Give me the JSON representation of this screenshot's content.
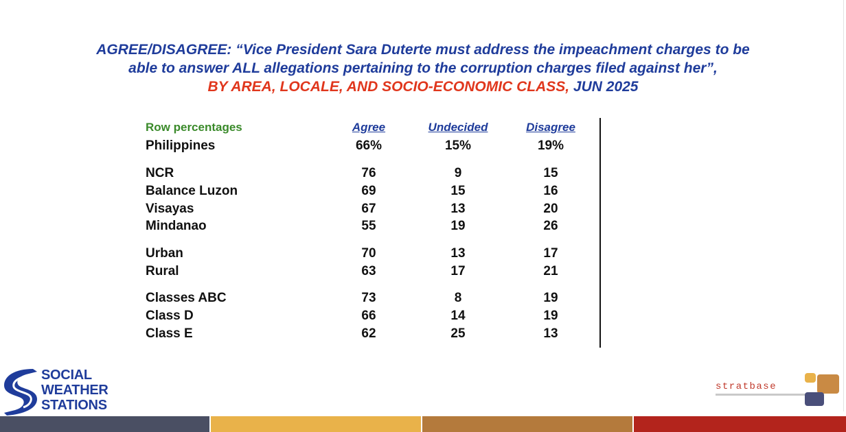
{
  "title": {
    "line1": "AGREE/DISAGREE: “Vice President Sara Duterte must address the impeachment charges to be",
    "line2": "able to answer ALL allegations pertaining to the corruption charges filed against her”,",
    "line3_red": "BY AREA, LOCALE, AND SOCIO-ECONOMIC CLASS,",
    "line3_blue": " JUN 2025"
  },
  "chart_data": {
    "type": "table",
    "row_header_label": "Row percentages",
    "columns": [
      "Agree",
      "Undecided",
      "Disagree"
    ],
    "rows": [
      {
        "label": "Philippines",
        "values": [
          "66%",
          "15%",
          "19%"
        ]
      },
      {
        "label": "NCR",
        "values": [
          "76",
          "9",
          "15"
        ]
      },
      {
        "label": "Balance Luzon",
        "values": [
          "69",
          "15",
          "16"
        ]
      },
      {
        "label": "Visayas",
        "values": [
          "67",
          "13",
          "20"
        ]
      },
      {
        "label": "Mindanao",
        "values": [
          "55",
          "19",
          "26"
        ]
      },
      {
        "label": "Urban",
        "values": [
          "70",
          "13",
          "17"
        ]
      },
      {
        "label": "Rural",
        "values": [
          "63",
          "17",
          "21"
        ]
      },
      {
        "label": "Classes ABC",
        "values": [
          "73",
          "8",
          "19"
        ]
      },
      {
        "label": "Class D",
        "values": [
          "66",
          "14",
          "19"
        ]
      },
      {
        "label": "Class E",
        "values": [
          "62",
          "25",
          "13"
        ]
      }
    ]
  },
  "logos": {
    "sws_line1": "SOCIAL",
    "sws_line2": "WEATHER",
    "sws_line3": "STATIONS",
    "stratbase_word": "stratbase"
  },
  "footer_colors": [
    "#4a4f63",
    "#e9b24a",
    "#b47a3c",
    "#b3241c"
  ]
}
